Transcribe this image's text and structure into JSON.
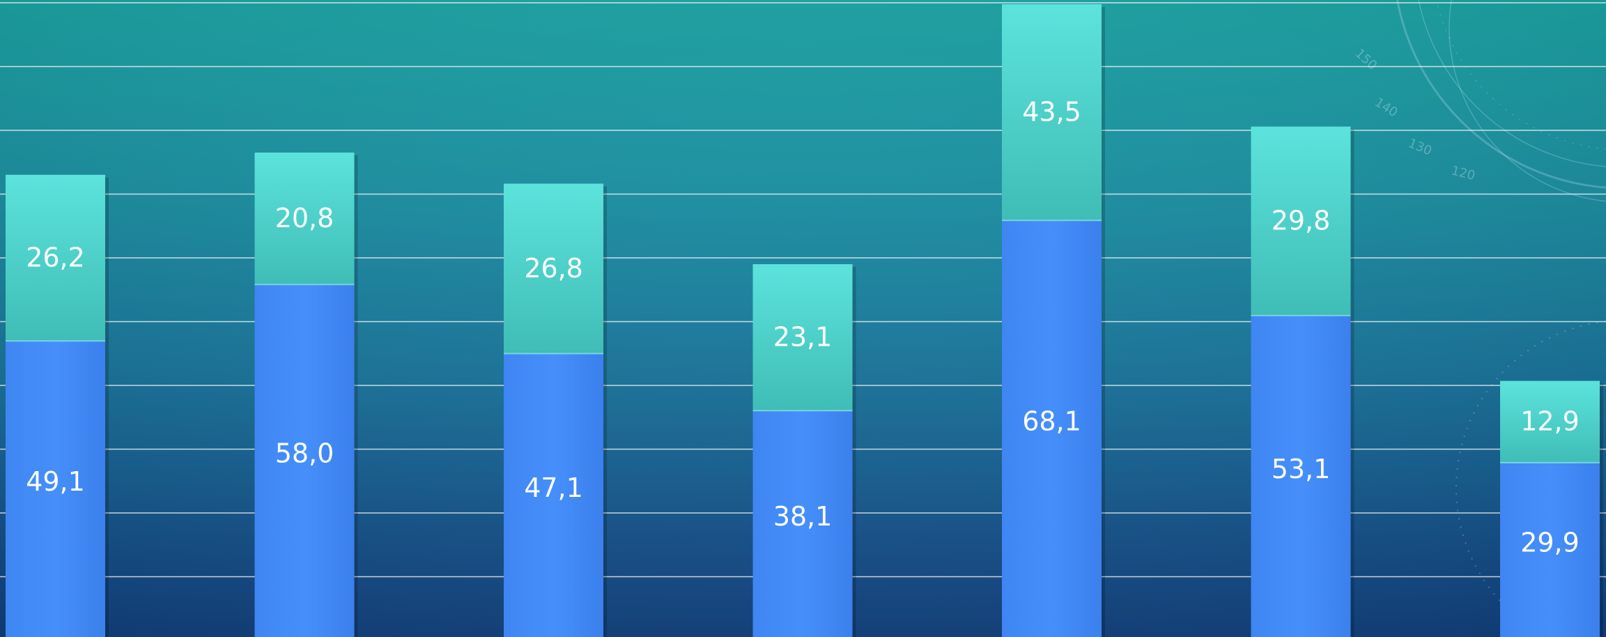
{
  "chart_data": {
    "type": "bar",
    "stacked": true,
    "categories": [
      "",
      "",
      "",
      "",
      "",
      "",
      ""
    ],
    "series": [
      {
        "values": [
          49.1,
          58.0,
          47.1,
          38.1,
          68.1,
          53.1,
          29.9
        ],
        "labels": [
          "49,1",
          "58,0",
          "47,1",
          "38,1",
          "68,1",
          "53,1",
          "29,9"
        ],
        "color": "#438df8"
      },
      {
        "values": [
          26.2,
          20.8,
          26.8,
          23.1,
          43.5,
          29.8,
          12.9
        ],
        "labels": [
          "26,2",
          "20,8",
          "26,8",
          "23,1",
          "43,5",
          "29,8",
          "12,9"
        ],
        "color": "#56ddd6"
      }
    ],
    "grid": true,
    "legend": "none"
  },
  "decoration": {
    "dial_numbers": [
      "150",
      "140",
      "130",
      "120"
    ]
  }
}
